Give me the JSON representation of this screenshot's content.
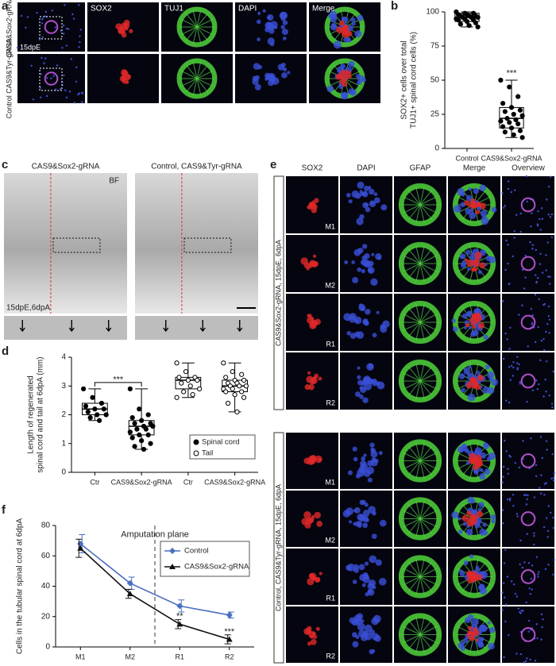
{
  "figure": {
    "a": {
      "letter": "a",
      "headers": [
        "SOX2",
        "TUJ1",
        "DAPI",
        "Merge"
      ],
      "rows": [
        "CAS9&Sox2-gRNA",
        "Control CAS9&Tyr-gRNA"
      ],
      "stage": "15dpE"
    },
    "c": {
      "letter": "c",
      "titles": [
        "CAS9&Sox2-gRNA",
        "Control, CAS9&Tyr-gRNA"
      ],
      "bf": "BF",
      "stage": "15dpE,6dpA"
    },
    "e": {
      "letter": "e",
      "headers": [
        "SOX2",
        "DAPI",
        "GFAP",
        "Merge",
        "Overview"
      ],
      "groups": [
        {
          "label": "CAS9&Sox2-gRNA, 15dpE, 6dpA",
          "rows": [
            "M1",
            "M2",
            "R1",
            "R2"
          ]
        },
        {
          "label": "Control, CAS9&Tyr-gRNA, 15dpE, 6dpA",
          "rows": [
            "M1",
            "M2",
            "R1",
            "R2"
          ]
        }
      ]
    }
  },
  "chart_data": [
    {
      "type": "box",
      "letter": "b",
      "ylabel": [
        "SOX2+ cells over total",
        "TUJ1+ spinal cord cells (%)"
      ],
      "categories": [
        "Control",
        "CAS9&Sox2-gRNA"
      ],
      "series": [
        {
          "name": null,
          "boxes": [
            {
              "min": 89,
              "q1": 93,
              "median": 96,
              "q3": 99,
              "max": 100,
              "points": [
                100,
                99,
                99,
                98,
                98,
                97,
                97,
                97,
                96,
                96,
                96,
                95,
                95,
                94,
                94,
                93,
                92,
                91,
                90,
                89
              ]
            },
            {
              "min": 8,
              "q1": 15,
              "median": 22,
              "q3": 30,
              "max": 50,
              "points": [
                50,
                45,
                38,
                33,
                30,
                28,
                27,
                25,
                24,
                22,
                21,
                20,
                19,
                18,
                16,
                15,
                13,
                12,
                10,
                8
              ]
            }
          ]
        }
      ],
      "annotations": [
        {
          "text": "***",
          "category": 1,
          "y": 55
        }
      ],
      "ylim": [
        0,
        100
      ],
      "yticks": [
        0,
        25,
        50,
        75,
        100
      ]
    },
    {
      "type": "box",
      "letter": "d",
      "ylabel": [
        "Length of regenerated",
        "spinal cord and tail at 6dpA (mm)"
      ],
      "categories": [
        "Ctr",
        "CAS9&Sox2-gRNA",
        "Ctr",
        "CAS9&Sox2-gRNA"
      ],
      "series": [
        {
          "name": "Spinal cord",
          "boxes": [
            {
              "min": 1.8,
              "q1": 2.0,
              "median": 2.2,
              "q3": 2.4,
              "max": 2.9,
              "points": [
                2.9,
                2.6,
                2.4,
                2.3,
                2.2,
                2.2,
                2.1,
                2.0,
                2.0,
                1.9,
                1.8
              ]
            },
            {
              "min": 0.8,
              "q1": 1.3,
              "median": 1.6,
              "q3": 1.8,
              "max": 2.9,
              "points": [
                2.9,
                2.2,
                2.0,
                1.9,
                1.8,
                1.7,
                1.7,
                1.6,
                1.6,
                1.5,
                1.5,
                1.4,
                1.3,
                1.3,
                1.2,
                1.1,
                1.0,
                0.9,
                0.8
              ]
            },
            null,
            null
          ]
        },
        {
          "name": "Tail",
          "boxes": [
            null,
            null,
            {
              "min": 2.6,
              "q1": 2.9,
              "median": 3.2,
              "q3": 3.3,
              "max": 3.8,
              "points": [
                3.8,
                3.5,
                3.3,
                3.3,
                3.2,
                3.2,
                3.1,
                3.0,
                2.9,
                2.8,
                2.7,
                2.6
              ]
            },
            {
              "min": 2.1,
              "q1": 2.8,
              "median": 3.0,
              "q3": 3.2,
              "max": 3.8,
              "points": [
                3.8,
                3.5,
                3.4,
                3.3,
                3.2,
                3.2,
                3.1,
                3.1,
                3.0,
                3.0,
                3.0,
                2.9,
                2.9,
                2.8,
                2.8,
                2.7,
                2.6,
                2.4,
                2.1
              ]
            }
          ]
        }
      ],
      "annotations": [
        {
          "text": "***",
          "category": 0.5,
          "y": 3.15
        }
      ],
      "ylim": [
        0,
        4
      ],
      "yticks": [
        0,
        1,
        2,
        3,
        4
      ]
    },
    {
      "type": "line",
      "letter": "f",
      "ylabel": [
        "Cells in the tubular spinal cord at 6dpA"
      ],
      "categories": [
        "M1",
        "M2",
        "R1",
        "R2"
      ],
      "series": [
        {
          "name": "Control",
          "color": "#4a6fc0",
          "values": [
            68,
            42,
            27,
            21
          ],
          "errors": [
            6,
            4,
            4,
            2
          ]
        },
        {
          "name": "CAS9&Sox2-gRNA",
          "color": "#111111",
          "values": [
            65,
            35,
            15,
            5
          ],
          "errors": [
            6,
            3,
            3,
            3
          ]
        }
      ],
      "annotations": [
        {
          "text": "Amputation plane",
          "category": 1.5,
          "y": 74
        },
        {
          "text": "**",
          "category": 2,
          "y": 20
        },
        {
          "text": "***",
          "category": 3,
          "y": 10
        }
      ],
      "ylim": [
        0,
        80
      ],
      "yticks": [
        0,
        20,
        40,
        60,
        80
      ]
    }
  ]
}
